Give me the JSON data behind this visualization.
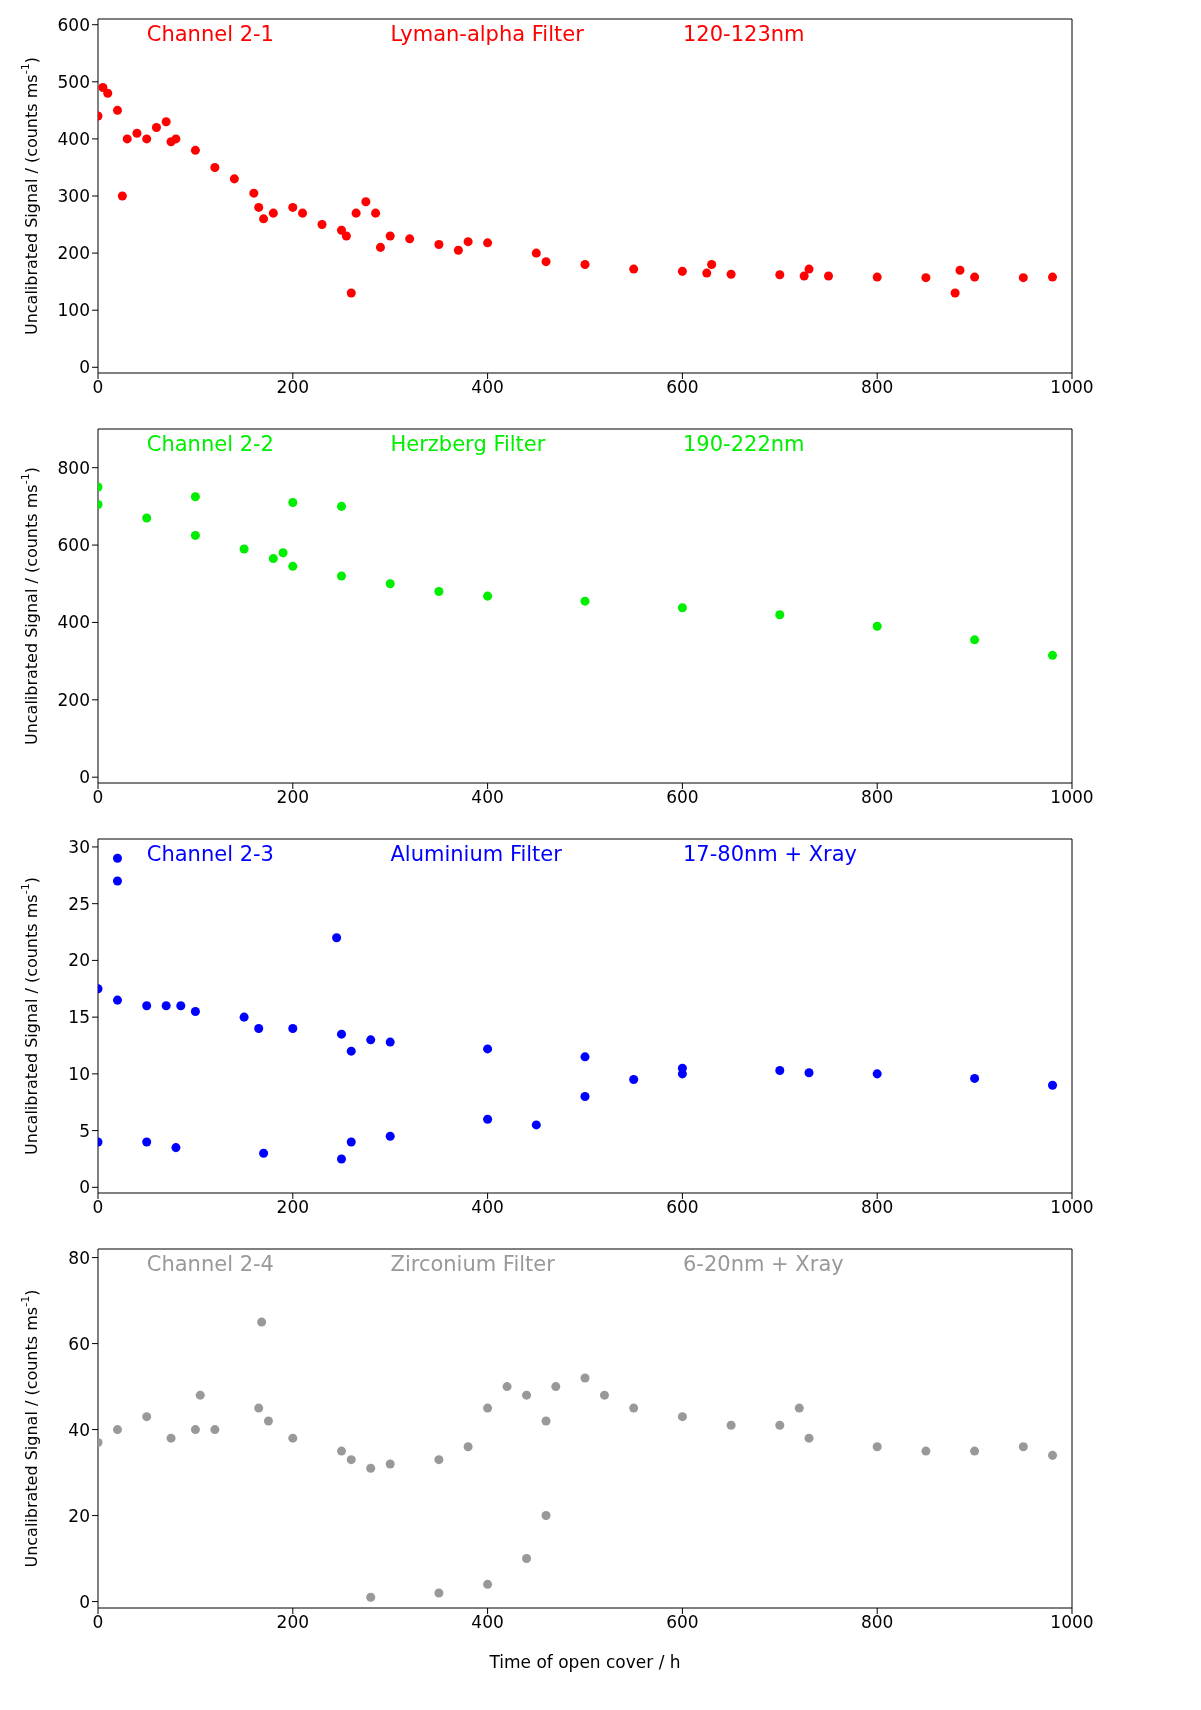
{
  "chart_data": [
    {
      "type": "scatter",
      "annotations": [
        "Channel 2-1",
        "Lyman-alpha Filter",
        "120-123nm"
      ],
      "ylabel": "Uncalibrated Signal / (counts ms$^{-1}$)",
      "marker": "circle",
      "xlim": [
        0,
        1000
      ],
      "xticks": [
        0,
        200,
        400,
        600,
        800,
        1000
      ],
      "ylim": [
        -10,
        610
      ],
      "yticks": [
        0,
        100,
        200,
        300,
        400,
        500,
        600
      ],
      "series": [
        {
          "color": "#ff0000",
          "x": [
            0,
            5,
            10,
            20,
            25,
            30,
            40,
            50,
            60,
            70,
            75,
            80,
            100,
            120,
            140,
            160,
            165,
            170,
            180,
            200,
            210,
            230,
            250,
            255,
            260,
            265,
            275,
            285,
            290,
            300,
            320,
            350,
            370,
            380,
            400,
            450,
            460,
            500,
            550,
            600,
            625,
            630,
            650,
            700,
            725,
            730,
            750,
            800,
            850,
            880,
            885,
            900,
            950,
            980
          ],
          "values": [
            440,
            490,
            480,
            450,
            300,
            400,
            410,
            400,
            420,
            430,
            395,
            400,
            380,
            350,
            330,
            305,
            280,
            260,
            270,
            280,
            270,
            250,
            240,
            230,
            130,
            270,
            290,
            270,
            210,
            230,
            225,
            215,
            205,
            220,
            218,
            200,
            185,
            180,
            172,
            168,
            165,
            180,
            163,
            162,
            160,
            172,
            160,
            158,
            157,
            130,
            170,
            158,
            157,
            158
          ]
        }
      ]
    },
    {
      "type": "scatter",
      "annotations": [
        "Channel 2-2",
        "Herzberg Filter",
        "190-222nm"
      ],
      "ylabel": "Uncalibrated Signal / (counts ms$^{-1}$)",
      "marker": "circle",
      "xlim": [
        0,
        1000
      ],
      "xticks": [
        0,
        200,
        400,
        600,
        800,
        1000
      ],
      "ylim": [
        -15,
        900
      ],
      "yticks": [
        0,
        200,
        400,
        600,
        800
      ],
      "series": [
        {
          "color": "#00ee00",
          "x": [
            0,
            50,
            100,
            150,
            180,
            190,
            200,
            250,
            300,
            350,
            400,
            500,
            600,
            700,
            800,
            900,
            980
          ],
          "values": [
            705,
            670,
            625,
            590,
            565,
            580,
            545,
            520,
            500,
            480,
            468,
            455,
            438,
            420,
            390,
            355,
            315
          ]
        },
        {
          "color": "#00ee00",
          "x": [
            0,
            100,
            200,
            250
          ],
          "values": [
            750,
            725,
            710,
            700
          ]
        }
      ]
    },
    {
      "type": "scatter",
      "annotations": [
        "Channel 2-3",
        "Aluminium Filter",
        "17-80nm + Xray"
      ],
      "ylabel": "Uncalibrated Signal / (counts ms$^{-1}$)",
      "marker": "circle",
      "xlim": [
        0,
        1000
      ],
      "xticks": [
        0,
        200,
        400,
        600,
        800,
        1000
      ],
      "ylim": [
        -0.5,
        30.7
      ],
      "yticks": [
        0,
        5,
        10,
        15,
        20,
        25,
        30
      ],
      "series": [
        {
          "color": "#0000ff",
          "x": [
            0,
            20,
            50,
            70,
            85,
            100,
            150,
            165,
            200,
            250,
            260,
            280,
            300,
            400,
            500,
            600,
            700,
            730,
            800,
            900,
            980
          ],
          "values": [
            17.5,
            16.5,
            16,
            16,
            16,
            15.5,
            15,
            14,
            14,
            13.5,
            12,
            13,
            12.8,
            12.2,
            11.5,
            10.5,
            10.3,
            10.1,
            10,
            9.6,
            9
          ]
        },
        {
          "color": "#0000ff",
          "x": [
            0,
            50,
            80,
            170,
            250,
            260,
            300,
            400,
            450,
            500,
            550,
            600
          ],
          "values": [
            4,
            4,
            3.5,
            3,
            2.5,
            4,
            4.5,
            6,
            5.5,
            8,
            9.5,
            10
          ]
        },
        {
          "color": "#0000ff",
          "x": [
            20,
            20,
            245
          ],
          "values": [
            29,
            27,
            22
          ]
        }
      ]
    },
    {
      "type": "scatter",
      "annotations": [
        "Channel 2-4",
        "Zirconium Filter",
        "6-20nm + Xray"
      ],
      "ylabel": "Uncalibrated Signal / (counts ms$^{-1}$)",
      "xlabel": "Time of open cover / h",
      "marker": "circle",
      "xlim": [
        0,
        1000
      ],
      "xticks": [
        0,
        200,
        400,
        600,
        800,
        1000
      ],
      "ylim": [
        -1.5,
        82
      ],
      "yticks": [
        0,
        20,
        40,
        60,
        80
      ],
      "series": [
        {
          "color": "#999999",
          "x": [
            0,
            20,
            50,
            75,
            100,
            105,
            120,
            165,
            168,
            175,
            200,
            250,
            260,
            280,
            300,
            350,
            380,
            400,
            420,
            440,
            460,
            470,
            500,
            520,
            550,
            600,
            650,
            700,
            720,
            730,
            800,
            850,
            900,
            950,
            980
          ],
          "values": [
            37,
            40,
            43,
            38,
            40,
            48,
            40,
            45,
            65,
            42,
            38,
            35,
            33,
            31,
            32,
            33,
            36,
            45,
            50,
            48,
            42,
            50,
            52,
            48,
            45,
            43,
            41,
            41,
            45,
            38,
            36,
            35,
            35,
            36,
            34
          ]
        },
        {
          "color": "#999999",
          "x": [
            280,
            350,
            400,
            440,
            460
          ],
          "values": [
            1,
            2,
            4,
            10,
            20
          ]
        }
      ]
    }
  ]
}
